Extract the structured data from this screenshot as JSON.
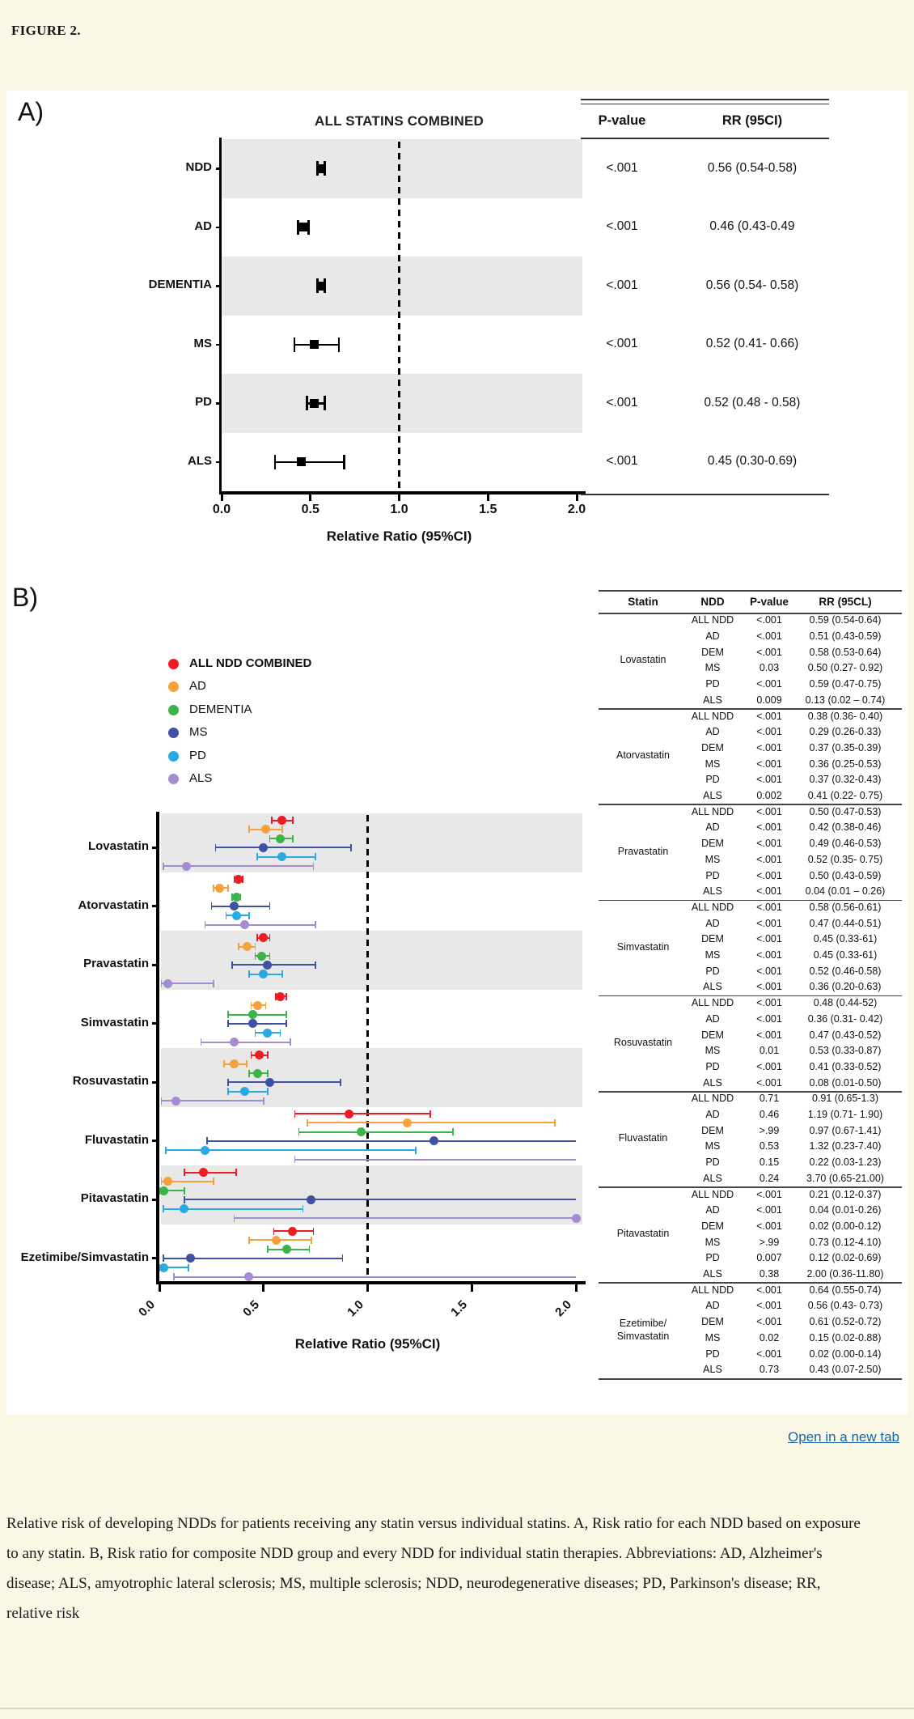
{
  "page": {
    "figure_label": "FIGURE 2.",
    "open_link_label": "Open in a new tab",
    "caption": "Relative risk of developing NDDs for patients receiving any statin versus individual statins. A, Risk ratio for each NDD based on exposure to any statin. B, Risk ratio for composite NDD group and every NDD for individual statin therapies. Abbreviations: AD, Alzheimer's disease; ALS, amyotrophic lateral sclerosis; MS, multiple sclerosis; NDD, neurodegenerative diseases; PD, Parkinson's disease; RR, relative risk"
  },
  "colors": {
    "page_background": "#fbf7e5",
    "figure_background": "#ffffff",
    "band_gray": "#e8e8e8",
    "link_blue": "#1666a9",
    "series": [
      "#ec1c24",
      "#f7a13c",
      "#3bb54a",
      "#3f51a3",
      "#29aae3",
      "#a58cd0"
    ]
  },
  "chart_data": [
    {
      "panel_label": "A)",
      "type": "forest",
      "title": "ALL STATINS COMBINED",
      "xlabel": "Relative Ratio (95%CI)",
      "xlim": [
        0,
        2
      ],
      "x_ticks": [
        0,
        0.5,
        1,
        1.5,
        2
      ],
      "x_tick_labels": [
        "0.0",
        "0.5",
        "1.0",
        "1.5",
        "2.0"
      ],
      "reference_line": 1.0,
      "marker": "black-square",
      "table_columns": [
        "P-value",
        "RR (95CI)"
      ],
      "rows": [
        {
          "label": "NDD",
          "rr": 0.56,
          "lo": 0.54,
          "hi": 0.58,
          "p": "<.001",
          "rr_text": "0.56 (0.54-0.58)"
        },
        {
          "label": "AD",
          "rr": 0.46,
          "lo": 0.43,
          "hi": 0.49,
          "p": "<.001",
          "rr_text": "0.46 (0.43-0.49"
        },
        {
          "label": "DEMENTIA",
          "rr": 0.56,
          "lo": 0.54,
          "hi": 0.58,
          "p": "<.001",
          "rr_text": "0.56 (0.54- 0.58)"
        },
        {
          "label": "MS",
          "rr": 0.52,
          "lo": 0.41,
          "hi": 0.66,
          "p": "<.001",
          "rr_text": "0.52 (0.41- 0.66)"
        },
        {
          "label": "PD",
          "rr": 0.52,
          "lo": 0.48,
          "hi": 0.58,
          "p": "<.001",
          "rr_text": "0.52 (0.48 - 0.58)"
        },
        {
          "label": "ALS",
          "rr": 0.45,
          "lo": 0.3,
          "hi": 0.69,
          "p": "<.001",
          "rr_text": "0.45 (0.30-0.69)"
        }
      ]
    },
    {
      "panel_label": "B)",
      "type": "forest-grouped",
      "xlabel": "Relative Ratio (95%CI)",
      "xlim": [
        0,
        2
      ],
      "x_ticks": [
        0,
        0.5,
        1,
        1.5,
        2
      ],
      "x_tick_labels": [
        "0.0",
        "0.5",
        "1.0",
        "1.5",
        "2.0"
      ],
      "reference_line": 1.0,
      "legend": [
        {
          "label": "ALL NDD COMBINED",
          "color": "#ec1c24",
          "bold": true
        },
        {
          "label": "AD",
          "color": "#f7a13c",
          "bold": false
        },
        {
          "label": "DEMENTIA",
          "color": "#3bb54a",
          "bold": false
        },
        {
          "label": "MS",
          "color": "#3f51a3",
          "bold": false
        },
        {
          "label": "PD",
          "color": "#29aae3",
          "bold": false
        },
        {
          "label": "ALS",
          "color": "#a58cd0",
          "bold": false
        }
      ],
      "table_columns": [
        "Statin",
        "NDD",
        "P-value",
        "RR (95CL)"
      ],
      "groups": [
        {
          "statin": "Lovastatin",
          "rows": [
            {
              "ndd": "ALL NDD",
              "p": "<.001",
              "rr": 0.59,
              "lo": 0.54,
              "hi": 0.64,
              "rr_text": "0.59 (0.54-0.64)"
            },
            {
              "ndd": "AD",
              "p": "<.001",
              "rr": 0.51,
              "lo": 0.43,
              "hi": 0.59,
              "rr_text": "0.51 (0.43-0.59)"
            },
            {
              "ndd": "DEM",
              "p": "<.001",
              "rr": 0.58,
              "lo": 0.53,
              "hi": 0.64,
              "rr_text": "0.58 (0.53-0.64)"
            },
            {
              "ndd": "MS",
              "p": "0.03",
              "rr": 0.5,
              "lo": 0.27,
              "hi": 0.92,
              "rr_text": "0.50 (0.27- 0.92)"
            },
            {
              "ndd": "PD",
              "p": "<.001",
              "rr": 0.59,
              "lo": 0.47,
              "hi": 0.75,
              "rr_text": "0.59 (0.47-0.75)"
            },
            {
              "ndd": "ALS",
              "p": "0.009",
              "rr": 0.13,
              "lo": 0.02,
              "hi": 0.74,
              "rr_text": "0.13 (0.02 – 0.74)"
            }
          ]
        },
        {
          "statin": "Atorvastatin",
          "rows": [
            {
              "ndd": "ALL NDD",
              "p": "<.001",
              "rr": 0.38,
              "lo": 0.36,
              "hi": 0.4,
              "rr_text": "0.38 (0.36- 0.40)"
            },
            {
              "ndd": "AD",
              "p": "<.001",
              "rr": 0.29,
              "lo": 0.26,
              "hi": 0.33,
              "rr_text": "0.29 (0.26-0.33)"
            },
            {
              "ndd": "DEM",
              "p": "<.001",
              "rr": 0.37,
              "lo": 0.35,
              "hi": 0.39,
              "rr_text": "0.37 (0.35-0.39)"
            },
            {
              "ndd": "MS",
              "p": "<.001",
              "rr": 0.36,
              "lo": 0.25,
              "hi": 0.53,
              "rr_text": "0.36 (0.25-0.53)"
            },
            {
              "ndd": "PD",
              "p": "<.001",
              "rr": 0.37,
              "lo": 0.32,
              "hi": 0.43,
              "rr_text": "0.37 (0.32-0.43)"
            },
            {
              "ndd": "ALS",
              "p": "0.002",
              "rr": 0.41,
              "lo": 0.22,
              "hi": 0.75,
              "rr_text": "0.41 (0.22- 0.75)"
            }
          ]
        },
        {
          "statin": "Pravastatin",
          "rows": [
            {
              "ndd": "ALL NDD",
              "p": "<.001",
              "rr": 0.5,
              "lo": 0.47,
              "hi": 0.53,
              "rr_text": "0.50 (0.47-0.53)"
            },
            {
              "ndd": "AD",
              "p": "<.001",
              "rr": 0.42,
              "lo": 0.38,
              "hi": 0.46,
              "rr_text": "0.42 (0.38-0.46)"
            },
            {
              "ndd": "DEM",
              "p": "<.001",
              "rr": 0.49,
              "lo": 0.46,
              "hi": 0.53,
              "rr_text": "0.49 (0.46-0.53)"
            },
            {
              "ndd": "MS",
              "p": "<.001",
              "rr": 0.52,
              "lo": 0.35,
              "hi": 0.75,
              "rr_text": "0.52 (0.35- 0.75)"
            },
            {
              "ndd": "PD",
              "p": "<.001",
              "rr": 0.5,
              "lo": 0.43,
              "hi": 0.59,
              "rr_text": "0.50 (0.43-0.59)"
            },
            {
              "ndd": "ALS",
              "p": "<.001",
              "rr": 0.04,
              "lo": 0.01,
              "hi": 0.26,
              "rr_text": "0.04 (0.01 – 0.26)"
            }
          ]
        },
        {
          "statin": "Simvastatin",
          "rows": [
            {
              "ndd": "ALL NDD",
              "p": "<.001",
              "rr": 0.58,
              "lo": 0.56,
              "hi": 0.61,
              "rr_text": "0.58 (0.56-0.61)"
            },
            {
              "ndd": "AD",
              "p": "<.001",
              "rr": 0.47,
              "lo": 0.44,
              "hi": 0.51,
              "rr_text": "0.47 (0.44-0.51)"
            },
            {
              "ndd": "DEM",
              "p": "<.001",
              "rr": 0.45,
              "lo": 0.33,
              "hi": 0.61,
              "rr_text": "0.45 (0.33-61)"
            },
            {
              "ndd": "MS",
              "p": "<.001",
              "rr": 0.45,
              "lo": 0.33,
              "hi": 0.61,
              "rr_text": "0.45 (0.33-61)"
            },
            {
              "ndd": "PD",
              "p": "<.001",
              "rr": 0.52,
              "lo": 0.46,
              "hi": 0.58,
              "rr_text": "0.52 (0.46-0.58)"
            },
            {
              "ndd": "ALS",
              "p": "<.001",
              "rr": 0.36,
              "lo": 0.2,
              "hi": 0.63,
              "rr_text": "0.36 (0.20-0.63)"
            }
          ]
        },
        {
          "statin": "Rosuvastatin",
          "rows": [
            {
              "ndd": "ALL NDD",
              "p": "<.001",
              "rr": 0.48,
              "lo": 0.44,
              "hi": 0.52,
              "rr_text": "0.48 (0.44-52)"
            },
            {
              "ndd": "AD",
              "p": "<.001",
              "rr": 0.36,
              "lo": 0.31,
              "hi": 0.42,
              "rr_text": "0.36 (0.31- 0.42)"
            },
            {
              "ndd": "DEM",
              "p": "<.001",
              "rr": 0.47,
              "lo": 0.43,
              "hi": 0.52,
              "rr_text": "0.47 (0.43-0.52)"
            },
            {
              "ndd": "MS",
              "p": "0.01",
              "rr": 0.53,
              "lo": 0.33,
              "hi": 0.87,
              "rr_text": "0.53 (0.33-0.87)"
            },
            {
              "ndd": "PD",
              "p": "<.001",
              "rr": 0.41,
              "lo": 0.33,
              "hi": 0.52,
              "rr_text": "0.41 (0.33-0.52)"
            },
            {
              "ndd": "ALS",
              "p": "<.001",
              "rr": 0.08,
              "lo": 0.01,
              "hi": 0.5,
              "rr_text": "0.08 (0.01-0.50)"
            }
          ]
        },
        {
          "statin": "Fluvastatin",
          "rows": [
            {
              "ndd": "ALL NDD",
              "p": "0.71",
              "rr": 0.91,
              "lo": 0.65,
              "hi": 1.3,
              "rr_text": "0.91 (0.65-1.3)"
            },
            {
              "ndd": "AD",
              "p": "0.46",
              "rr": 1.19,
              "lo": 0.71,
              "hi": 1.9,
              "rr_text": "1.19 (0.71- 1.90)"
            },
            {
              "ndd": "DEM",
              "p": ">.99",
              "rr": 0.97,
              "lo": 0.67,
              "hi": 1.41,
              "rr_text": "0.97 (0.67-1.41)"
            },
            {
              "ndd": "MS",
              "p": "0.53",
              "rr": 1.32,
              "lo": 0.23,
              "hi": 7.4,
              "rr_text": "1.32 (0.23-7.40)"
            },
            {
              "ndd": "PD",
              "p": "0.15",
              "rr": 0.22,
              "lo": 0.03,
              "hi": 1.23,
              "rr_text": "0.22 (0.03-1.23)"
            },
            {
              "ndd": "ALS",
              "p": "0.24",
              "rr": 3.7,
              "lo": 0.65,
              "hi": 21.0,
              "rr_text": "3.70 (0.65-21.00)"
            }
          ]
        },
        {
          "statin": "Pitavastatin",
          "rows": [
            {
              "ndd": "ALL NDD",
              "p": "<.001",
              "rr": 0.21,
              "lo": 0.12,
              "hi": 0.37,
              "rr_text": "0.21 (0.12-0.37)"
            },
            {
              "ndd": "AD",
              "p": "<.001",
              "rr": 0.04,
              "lo": 0.01,
              "hi": 0.26,
              "rr_text": "0.04 (0.01-0.26)"
            },
            {
              "ndd": "DEM",
              "p": "<.001",
              "rr": 0.02,
              "lo": 0.0,
              "hi": 0.12,
              "rr_text": "0.02 (0.00-0.12)"
            },
            {
              "ndd": "MS",
              "p": ">.99",
              "rr": 0.73,
              "lo": 0.12,
              "hi": 4.1,
              "rr_text": "0.73 (0.12-4.10)"
            },
            {
              "ndd": "PD",
              "p": "0.007",
              "rr": 0.12,
              "lo": 0.02,
              "hi": 0.69,
              "rr_text": "0.12 (0.02-0.69)"
            },
            {
              "ndd": "ALS",
              "p": "0.38",
              "rr": 2.0,
              "lo": 0.36,
              "hi": 11.8,
              "rr_text": "2.00 (0.36-11.80)"
            }
          ]
        },
        {
          "statin": "Ezetimibe/Simvastatin",
          "rows": [
            {
              "ndd": "ALL NDD",
              "p": "<.001",
              "rr": 0.64,
              "lo": 0.55,
              "hi": 0.74,
              "rr_text": "0.64 (0.55-0.74)"
            },
            {
              "ndd": "AD",
              "p": "<.001",
              "rr": 0.56,
              "lo": 0.43,
              "hi": 0.73,
              "rr_text": "0.56 (0.43- 0.73)"
            },
            {
              "ndd": "DEM",
              "p": "<.001",
              "rr": 0.61,
              "lo": 0.52,
              "hi": 0.72,
              "rr_text": "0.61 (0.52-0.72)"
            },
            {
              "ndd": "MS",
              "p": "0.02",
              "rr": 0.15,
              "lo": 0.02,
              "hi": 0.88,
              "rr_text": "0.15 (0.02-0.88)"
            },
            {
              "ndd": "PD",
              "p": "<.001",
              "rr": 0.02,
              "lo": 0.0,
              "hi": 0.14,
              "rr_text": "0.02 (0.00-0.14)"
            },
            {
              "ndd": "ALS",
              "p": "0.73",
              "rr": 0.43,
              "lo": 0.07,
              "hi": 2.5,
              "rr_text": "0.43 (0.07-2.50)"
            }
          ]
        }
      ]
    }
  ]
}
